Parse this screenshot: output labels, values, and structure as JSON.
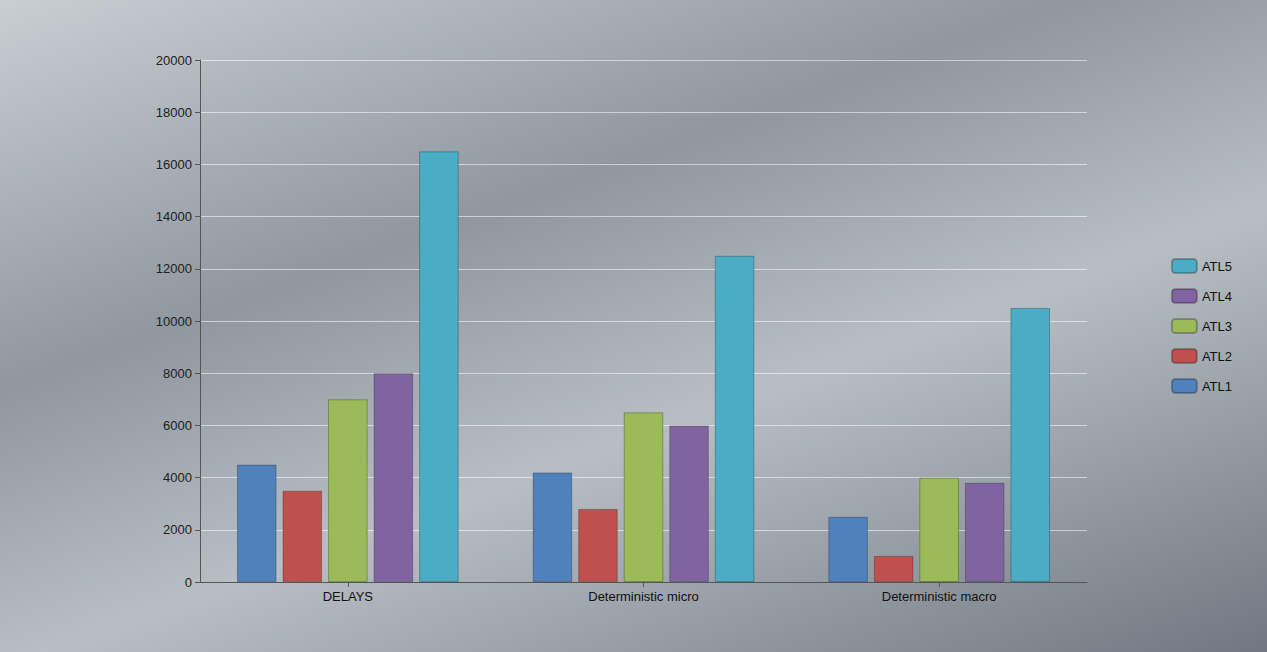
{
  "chart_data": {
    "type": "bar",
    "categories": [
      "DELAYS",
      "Deterministic micro",
      "Deterministic macro"
    ],
    "series": [
      {
        "name": "ATL1",
        "color": "#4f81bd",
        "values": [
          4500,
          4200,
          2500
        ]
      },
      {
        "name": "ATL2",
        "color": "#c0504d",
        "values": [
          3500,
          2800,
          1000
        ]
      },
      {
        "name": "ATL3",
        "color": "#9bbb59",
        "values": [
          7000,
          6500,
          4000
        ]
      },
      {
        "name": "ATL4",
        "color": "#8064a2",
        "values": [
          8000,
          6000,
          3800
        ]
      },
      {
        "name": "ATL5",
        "color": "#4bacc6",
        "values": [
          16500,
          12500,
          10500
        ]
      }
    ],
    "ylim": [
      0,
      20000
    ],
    "yticks": [
      0,
      2000,
      4000,
      6000,
      8000,
      10000,
      12000,
      14000,
      16000,
      18000,
      20000
    ],
    "grid": true,
    "legend": "right"
  }
}
